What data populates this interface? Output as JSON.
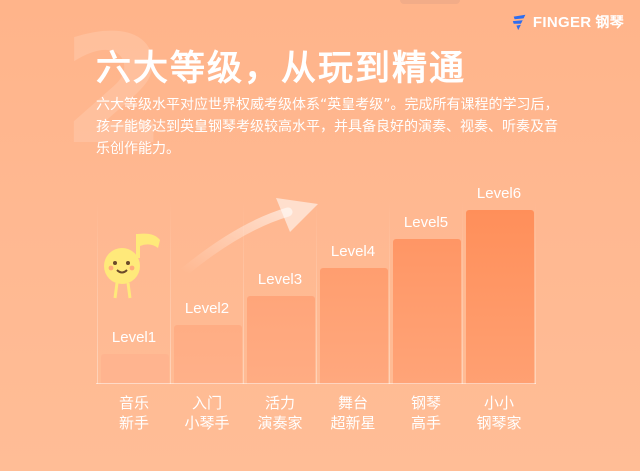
{
  "brand": {
    "name": "FINGER",
    "suffix": "钢琴",
    "logo": "finger-logo-icon"
  },
  "watermark_number": "2",
  "title": "六大等级，从玩到精通",
  "description": "六大等级水平对应世界权威考级体系“英皇考级”。完成所有课程的学习后，孩子能够达到英皇钢琴考级较高水平，并具备良好的演奏、视奏、听奏及音乐创作能力。",
  "colors": {
    "bar_light": "#ffb48f",
    "bar_dark": "#ff8f5a",
    "background": "#ffb891"
  },
  "chart_data": {
    "type": "bar",
    "categories": [
      "音乐\n新手",
      "入门\n小琴手",
      "活力\n演奏家",
      "舞台\n超新星",
      "钢琴\n高手",
      "小小\n钢琴家"
    ],
    "category_lines": [
      [
        "音乐",
        "新手"
      ],
      [
        "入门",
        "小琴手"
      ],
      [
        "活力",
        "演奏家"
      ],
      [
        "舞台",
        "超新星"
      ],
      [
        "钢琴",
        "高手"
      ],
      [
        "小小",
        "钢琴家"
      ]
    ],
    "data_labels": [
      "Level1",
      "Level2",
      "Level3",
      "Level4",
      "Level5",
      "Level6"
    ],
    "values": [
      1,
      2,
      3,
      4,
      5,
      6
    ],
    "title": "",
    "xlabel": "",
    "ylabel": "",
    "ylim": [
      0,
      6
    ],
    "grid": false,
    "legend": "none"
  }
}
